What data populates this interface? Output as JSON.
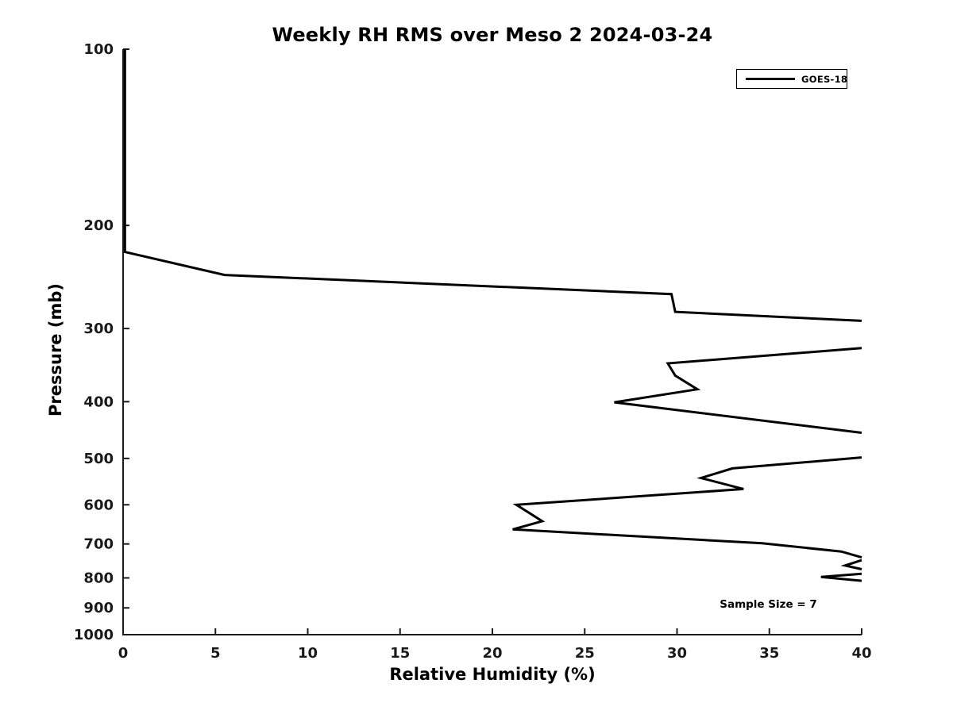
{
  "chart_data": {
    "type": "line",
    "title": "Weekly RH RMS over Meso 2 2024-03-24",
    "xlabel": "Relative Humidity (%)",
    "ylabel": "Pressure (mb)",
    "xlim": [
      0,
      40
    ],
    "ylim": [
      100,
      1000
    ],
    "y_scale": "log",
    "y_direction": "reversed",
    "grid": false,
    "box": false,
    "xticks": [
      0,
      5,
      10,
      15,
      20,
      25,
      30,
      35,
      40
    ],
    "yticks": [
      100,
      200,
      300,
      400,
      500,
      600,
      700,
      800,
      900,
      1000
    ],
    "legend_position": "northeast",
    "annotation": "Sample Size = 7",
    "sample_size": 7,
    "axis_color": "#1a1a1a",
    "series": [
      {
        "name": "GOES-18",
        "color": "#000000",
        "line_width": 3,
        "note": "RH RMS (%) vs pressure (mb); strands are segments visible within xlim, line clipped where RMS exceeds 40%",
        "strands": [
          [
            [
              0.1,
              100
            ],
            [
              0.1,
              222
            ],
            [
              5.5,
              243
            ],
            [
              29.7,
              262
            ],
            [
              29.9,
              281
            ],
            [
              40,
              291
            ]
          ],
          [
            [
              40,
              324
            ],
            [
              29.5,
              344
            ],
            [
              29.9,
              361
            ],
            [
              31.1,
              381
            ],
            [
              26.6,
              401
            ],
            [
              40,
              452
            ]
          ],
          [
            [
              40,
              498
            ],
            [
              33.0,
              520
            ],
            [
              31.3,
              540
            ],
            [
              33.6,
              564
            ],
            [
              21.3,
              600
            ],
            [
              22.7,
              640
            ],
            [
              21.1,
              661
            ],
            [
              34.6,
              698
            ],
            [
              38.9,
              721
            ],
            [
              40,
              738
            ]
          ],
          [
            [
              40,
              746
            ],
            [
              39.1,
              762
            ],
            [
              40,
              773
            ]
          ],
          [
            [
              40,
              787
            ],
            [
              37.8,
              797
            ],
            [
              40,
              809
            ]
          ]
        ]
      }
    ]
  },
  "layout_text": {
    "title": "Weekly RH RMS over Meso 2 2024-03-24",
    "xlabel": "Relative Humidity (%)",
    "ylabel": "Pressure (mb)",
    "legend_label": "GOES-18",
    "annotation": "Sample Size = 7"
  }
}
